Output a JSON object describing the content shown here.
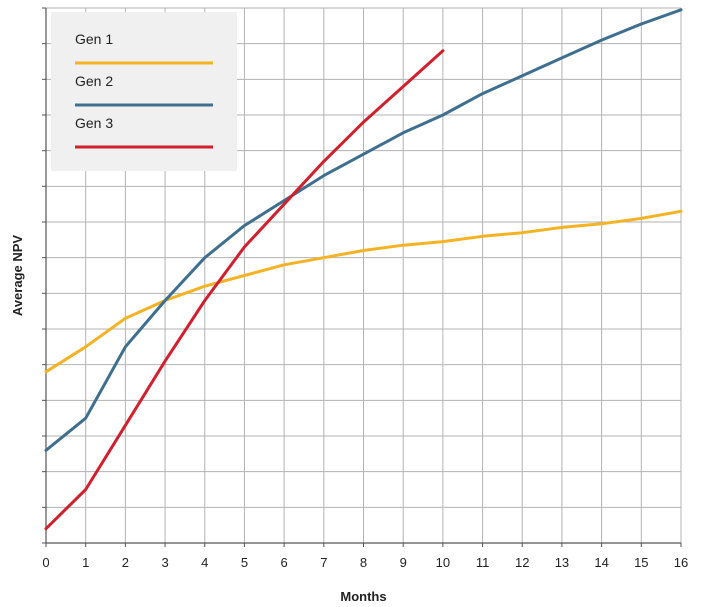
{
  "chart_data": {
    "type": "line",
    "title": "",
    "xlabel": "Months",
    "ylabel": "Average NPV",
    "xlim": [
      0,
      16
    ],
    "ylim": [
      0,
      15
    ],
    "x_ticks": [
      0,
      1,
      2,
      3,
      4,
      5,
      6,
      7,
      8,
      9,
      10,
      11,
      12,
      13,
      14,
      15,
      16
    ],
    "y_grid_count": 15,
    "grid": true,
    "y_tick_labels": false,
    "legend_position": "top-left",
    "series": [
      {
        "name": "Gen 1",
        "color": "#F5B324",
        "x": [
          0,
          1,
          2,
          3,
          4,
          5,
          6,
          7,
          8,
          9,
          10,
          11,
          12,
          13,
          14,
          15,
          16
        ],
        "y": [
          4.8,
          5.5,
          6.3,
          6.8,
          7.2,
          7.5,
          7.8,
          8.0,
          8.2,
          8.35,
          8.45,
          8.6,
          8.7,
          8.85,
          8.95,
          9.1,
          9.3
        ]
      },
      {
        "name": "Gen 2",
        "color": "#3F6F8F",
        "x": [
          0,
          1,
          2,
          3,
          4,
          5,
          6,
          7,
          8,
          9,
          10,
          11,
          12,
          13,
          14,
          15,
          16
        ],
        "y": [
          2.6,
          3.5,
          5.5,
          6.8,
          8.0,
          8.9,
          9.6,
          10.3,
          10.9,
          11.5,
          12.0,
          12.6,
          13.1,
          13.6,
          14.1,
          14.55,
          14.95
        ]
      },
      {
        "name": "Gen 3",
        "color": "#D0202E",
        "x": [
          0,
          1,
          2,
          3,
          4,
          5,
          6,
          7,
          8,
          9,
          10
        ],
        "y": [
          0.4,
          1.5,
          3.3,
          5.1,
          6.8,
          8.3,
          9.5,
          10.7,
          11.8,
          12.8,
          13.8
        ]
      }
    ]
  }
}
